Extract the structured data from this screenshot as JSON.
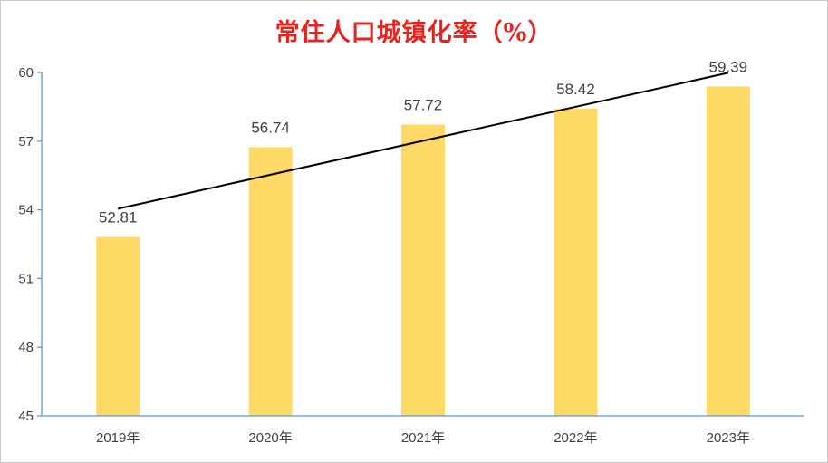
{
  "chart_data": {
    "type": "bar",
    "title": "常住人口城镇化率（%）",
    "categories": [
      "2019年",
      "2020年",
      "2021年",
      "2022年",
      "2023年"
    ],
    "values": [
      52.81,
      56.74,
      57.72,
      58.42,
      59.39
    ],
    "data_labels": [
      "52.81",
      "56.74",
      "57.72",
      "58.42",
      "59.39"
    ],
    "trendline": {
      "type": "linear",
      "color": "#000000"
    },
    "ylim": [
      45,
      60
    ],
    "yticks": [
      45,
      48,
      51,
      54,
      57,
      60
    ],
    "xlabel": "",
    "ylabel": "",
    "grid": false,
    "legend": "none",
    "colors": {
      "bar": "#ffd966",
      "axis": "#5b9bd5",
      "title": "#e8231d",
      "trendline": "#000000"
    }
  }
}
